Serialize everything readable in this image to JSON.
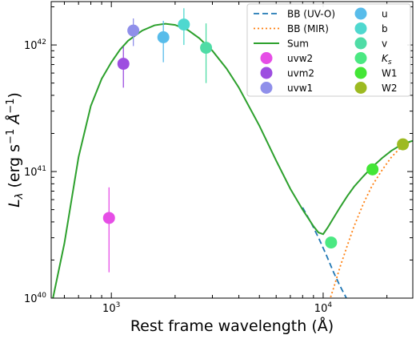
{
  "chart_data": {
    "type": "scatter",
    "xlabel": "Rest frame wavelength (Å)",
    "ylabel_main": "L",
    "ylabel_sub": "λ",
    "ylabel_units_open": " (erg s",
    "ylabel_units_exp1": "−1",
    "ylabel_units_mid": " Å",
    "ylabel_units_exp2": "−1",
    "ylabel_units_close": ")",
    "x_scale": "log",
    "y_scale": "log",
    "xlim": [
      520,
      26500
    ],
    "ylim": [
      1e+40,
      2.2e+42
    ],
    "x_ticks": [
      {
        "value": 1000,
        "base": "10",
        "exp": "3"
      },
      {
        "value": 10000,
        "base": "10",
        "exp": "4"
      }
    ],
    "y_ticks": [
      {
        "value": 1e+40,
        "base": "10",
        "exp": "40"
      },
      {
        "value": 1e+41,
        "base": "10",
        "exp": "41"
      },
      {
        "value": 1e+42,
        "base": "10",
        "exp": "42"
      }
    ],
    "grid": false,
    "legend_position": "top-right",
    "lines": [
      {
        "name": "BB (UV-O)",
        "style": "dashed",
        "color": "#1f77b4",
        "x": [
          8000,
          8800,
          9600,
          10400,
          11200,
          12000,
          12800,
          13200
        ],
        "y": [
          5.2e+40,
          3.9e+40,
          2.9e+40,
          2.15e+40,
          1.6e+40,
          1.25e+40,
          1.02e+40,
          9e+39
        ]
      },
      {
        "name": "BB (MIR)",
        "style": "dotted",
        "color": "#ff7f0e",
        "x": [
          10700,
          11200,
          12000,
          13000,
          14000,
          15500,
          17000,
          19000,
          21000,
          23000,
          25000,
          26500
        ],
        "y": [
          9.5e+39,
          1.2e+40,
          1.75e+40,
          2.6e+40,
          3.7e+40,
          5.6e+40,
          7.7e+40,
          1.03e+41,
          1.3e+41,
          1.52e+41,
          1.68e+41,
          1.74e+41
        ]
      },
      {
        "name": "Sum",
        "style": "solid",
        "color": "#2ca02c",
        "x": [
          530,
          600,
          700,
          800,
          900,
          1000,
          1100,
          1200,
          1400,
          1600,
          1800,
          2000,
          2300,
          2600,
          3000,
          3500,
          4000,
          5000,
          6000,
          7000,
          8000,
          9000,
          9500,
          10000,
          10500,
          11000,
          12000,
          13000,
          14000,
          15500,
          17000,
          19000,
          21000,
          23000,
          25000,
          26500
        ],
        "y": [
          1e+40,
          2.7e+40,
          1.3e+41,
          3.3e+41,
          5.4e+41,
          7.3e+41,
          9.2e+41,
          1.08e+42,
          1.3e+42,
          1.43e+42,
          1.47e+42,
          1.44e+42,
          1.31e+42,
          1.13e+42,
          9e+41,
          6.5e+41,
          4.6e+41,
          2.3e+41,
          1.22e+41,
          7.3e+40,
          5e+40,
          3.7e+40,
          3.3e+40,
          3.2e+40,
          3.6e+40,
          4.1e+40,
          5.2e+40,
          6.4e+40,
          7.6e+40,
          9.2e+40,
          1.08e+41,
          1.28e+41,
          1.46e+41,
          1.6e+41,
          1.7e+41,
          1.75e+41
        ]
      }
    ],
    "points": [
      {
        "name": "uvw2",
        "color": "#e64ee6",
        "x": 975,
        "y": 4.3e+40,
        "ylo": 1.6e+40,
        "yhi": 7.5e+40
      },
      {
        "name": "uvm2",
        "color": "#9d4ee0",
        "x": 1140,
        "y": 7.1e+41,
        "ylo": 4.6e+41,
        "yhi": 9.7e+41
      },
      {
        "name": "uvw1",
        "color": "#8f8fea",
        "x": 1270,
        "y": 1.3e+42,
        "ylo": 9.8e+41,
        "yhi": 1.62e+42
      },
      {
        "name": "u",
        "color": "#58bcea",
        "x": 1760,
        "y": 1.15e+42,
        "ylo": 7.3e+41,
        "yhi": 1.55e+42
      },
      {
        "name": "b",
        "color": "#4fd8cf",
        "x": 2200,
        "y": 1.45e+42,
        "ylo": 1e+42,
        "yhi": 1.95e+42
      },
      {
        "name": "v",
        "color": "#4fdca6",
        "x": 2800,
        "y": 9.5e+41,
        "ylo": 5e+41,
        "yhi": 1.48e+42
      },
      {
        "name": "K_s",
        "color": "#4be882",
        "x": 10900,
        "y": 2.75e+40
      },
      {
        "name": "W1",
        "color": "#43e636",
        "x": 17100,
        "y": 1.04e+41
      },
      {
        "name": "W2",
        "color": "#9dba21",
        "x": 23800,
        "y": 1.64e+41
      }
    ],
    "legend": [
      {
        "label": "BB (UV-O)",
        "kind": "dashed",
        "color": "#1f77b4"
      },
      {
        "label": "BB (MIR)",
        "kind": "dotted",
        "color": "#ff7f0e"
      },
      {
        "label": "Sum",
        "kind": "solid",
        "color": "#2ca02c"
      },
      {
        "label": "uvw2",
        "kind": "marker",
        "color": "#e64ee6"
      },
      {
        "label": "uvm2",
        "kind": "marker",
        "color": "#9d4ee0"
      },
      {
        "label": "uvw1",
        "kind": "marker",
        "color": "#8f8fea"
      },
      {
        "label": "u",
        "kind": "marker",
        "color": "#58bcea"
      },
      {
        "label": "b",
        "kind": "marker",
        "color": "#4fd8cf"
      },
      {
        "label": "v",
        "kind": "marker",
        "color": "#4fdca6"
      },
      {
        "label": "K",
        "sub": "s",
        "kind": "marker",
        "color": "#4be882"
      },
      {
        "label": "W1",
        "kind": "marker",
        "color": "#43e636"
      },
      {
        "label": "W2",
        "kind": "marker",
        "color": "#9dba21"
      }
    ]
  }
}
